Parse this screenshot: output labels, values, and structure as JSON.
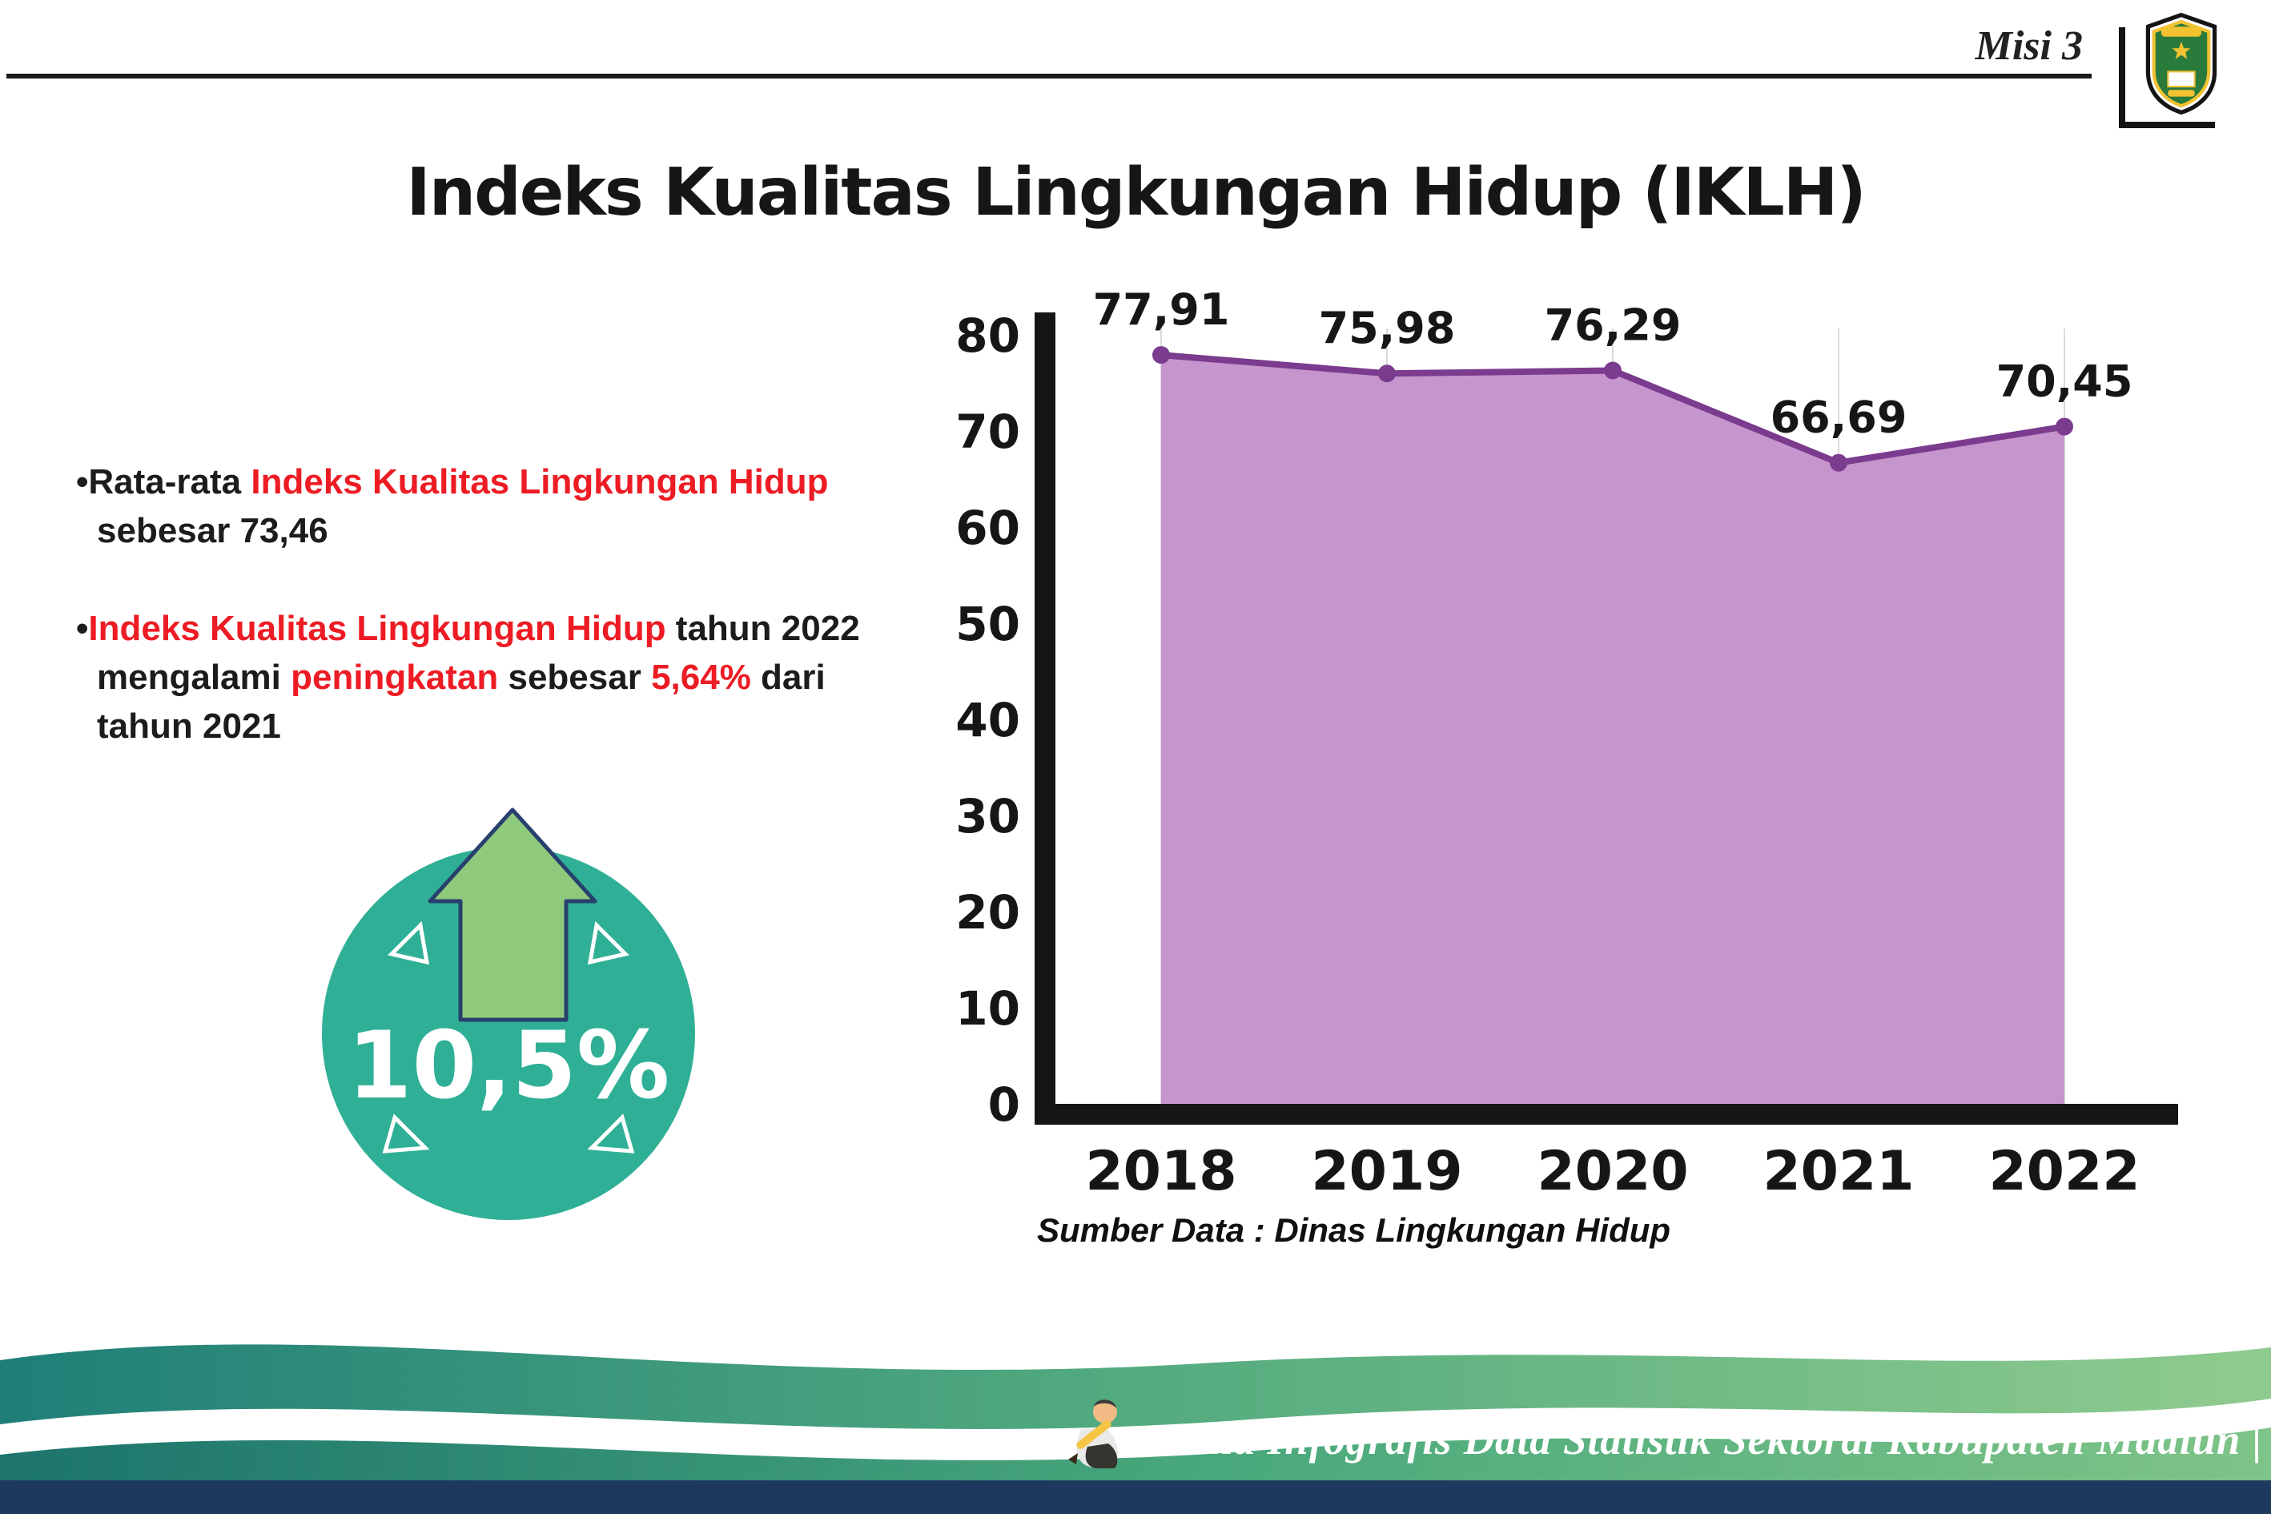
{
  "header": {
    "misi_label": "Misi 3",
    "title": "Indeks Kualitas Lingkungan Hidup (IKLH)"
  },
  "bullets": {
    "b1": {
      "p1": "•Rata-rata ",
      "p2": "Indeks Kualitas Lingkungan Hidup",
      "p3": " sebesar 73,46"
    },
    "b2": {
      "p1": "•",
      "p2": "Indeks Kualitas Lingkungan Hidup",
      "p3": " tahun 2022 mengalami ",
      "p4": "peningkatan",
      "p5": " sebesar ",
      "p6": "5,64%",
      "p7": " dari tahun 2021"
    }
  },
  "badge": {
    "value": "10,5%"
  },
  "chart_data": {
    "type": "area",
    "categories": [
      "2018",
      "2019",
      "2020",
      "2021",
      "2022"
    ],
    "values": [
      77.91,
      75.98,
      76.29,
      66.69,
      70.45
    ],
    "value_labels": [
      "77,91",
      "75,98",
      "76,29",
      "66,69",
      "70,45"
    ],
    "ylim": [
      0,
      80
    ],
    "yticks": [
      0,
      10,
      20,
      30,
      40,
      50,
      60,
      70,
      80
    ],
    "grid": "vertical-light",
    "legend": "none",
    "line_color": "#7b3b8e",
    "fill_color": "#c795ce",
    "marker": "circle",
    "source_note": "Sumber Data : Dinas Lingkungan Hidup"
  },
  "footer": {
    "credit": "Media Infografis Data Statistik Sektoral Kabupaten Madiun |"
  },
  "colors": {
    "accent_red": "#ed1c24",
    "circle_teal": "#2fb096",
    "arrow_green": "#8fca7c",
    "navy": "#1d3a5e"
  }
}
